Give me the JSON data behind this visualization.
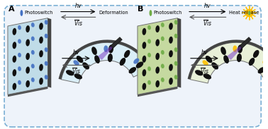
{
  "bg_color": "#eef3fa",
  "border_color": "#7aafd4",
  "panel_A_label": "A",
  "panel_B_label": "B",
  "photoswitch_label": "Photoswitch",
  "deformation_label": "Deformation",
  "heat_release_label": "Heat release",
  "photoswitch_color_A": "#4472c4",
  "photoswitch_color_B": "#70ad47",
  "heat_sun_color": "#ffc000",
  "flat_bg_A": "#c0dce8",
  "flat_bg_B": "#c5d9a0",
  "curl_bg_A": "#daeef7",
  "curl_bg_B": "#e8f0d8",
  "black_oval": "#111111",
  "laser_color": "#7B3FC4",
  "device_border": "#707070",
  "edge_dark": "#444444"
}
